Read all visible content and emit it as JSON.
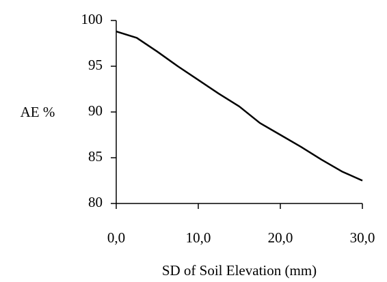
{
  "chart_data": {
    "type": "line",
    "xlabel": "SD of Soil Elevation (mm)",
    "ylabel": "AE %",
    "x": [
      0,
      2.5,
      5,
      7.5,
      10,
      12.5,
      15,
      17.5,
      20,
      22.5,
      25,
      27.5,
      30
    ],
    "series": [
      {
        "color": "#000000",
        "values": [
          98.8,
          98.1,
          96.6,
          95.0,
          93.5,
          92.0,
          90.6,
          88.8,
          87.5,
          86.2,
          84.8,
          83.5,
          82.5
        ]
      }
    ],
    "xlim": [
      0,
      30
    ],
    "xticks": [
      {
        "value": 0,
        "label": "0,0"
      },
      {
        "value": 10,
        "label": "10,0"
      },
      {
        "value": 20,
        "label": "20,0"
      },
      {
        "value": 30,
        "label": "30,0"
      }
    ],
    "ylim": [
      80,
      100
    ],
    "yticks": [
      80,
      85,
      90,
      95,
      100
    ],
    "grid": false
  }
}
